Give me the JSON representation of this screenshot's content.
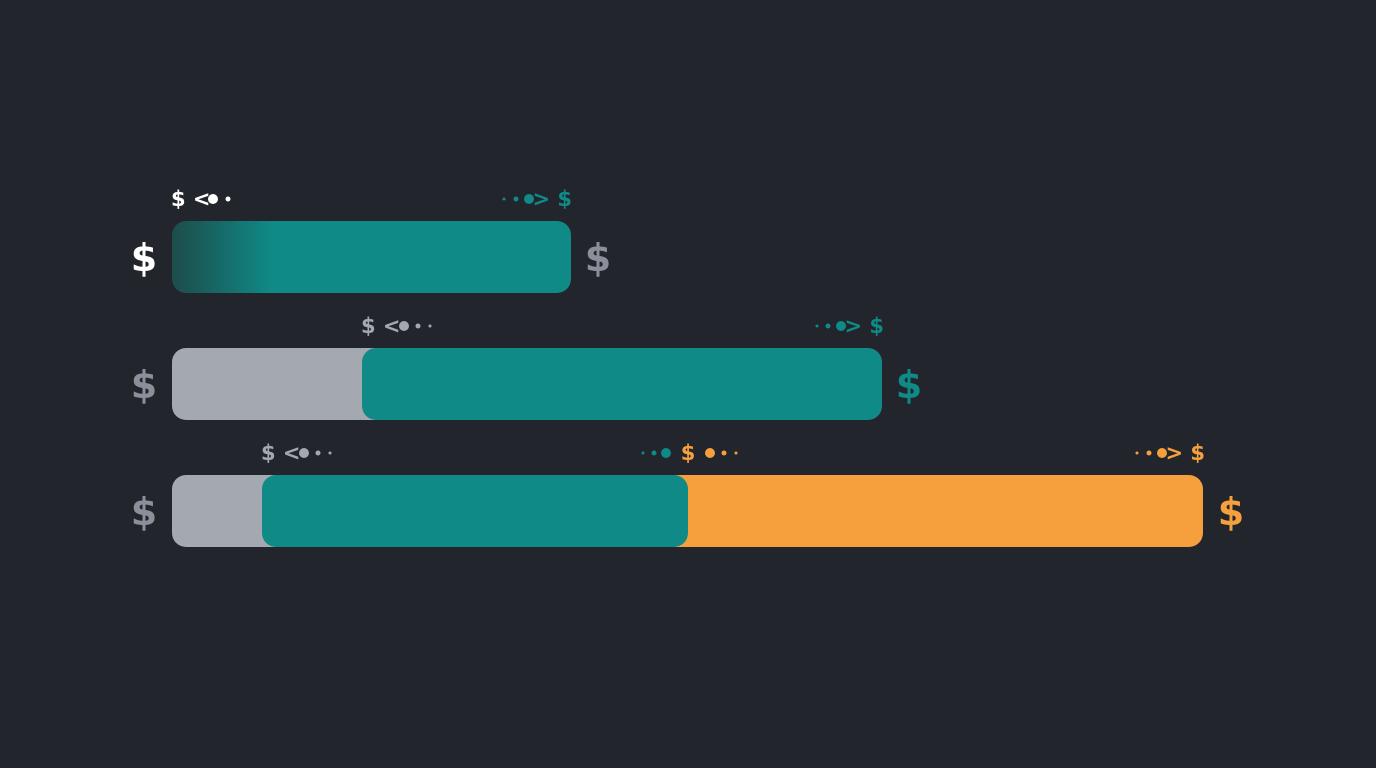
{
  "rows": [
    {
      "left_symbol": "$",
      "right_symbol": "$",
      "markers": [
        "$ <",
        "> $"
      ]
    },
    {
      "left_symbol": "$",
      "right_symbol": "$",
      "markers": [
        "$ <",
        "> $"
      ]
    },
    {
      "left_symbol": "$",
      "right_symbol": "$",
      "markers": [
        "$ <",
        "$",
        "> $"
      ]
    }
  ]
}
